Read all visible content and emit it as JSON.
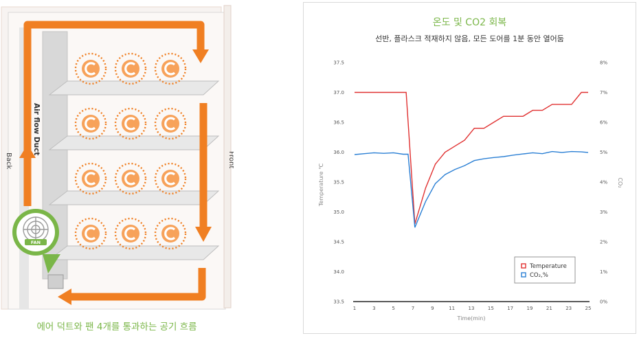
{
  "left": {
    "caption": "에어 덕트와 팬 4개를 통과하는 공기 흐름",
    "duct_label": "Air flow Duct",
    "back_label": "Back",
    "front_label": "Front",
    "fan_label": "FAN",
    "colors": {
      "arrow": "#f07f22",
      "accent": "#7ab648",
      "shelf": "#dadada"
    }
  },
  "chart_data": {
    "type": "line",
    "title": "온도 및 CO2 회복",
    "subtitle": "선반, 플라스크 적재하지 않음, 모든 도어를 1분 동안 열어둠",
    "xlabel": "Time(min)",
    "ylabel": "Temperature ℃",
    "y2label": "CO₂",
    "x_ticks": [
      "1",
      "3",
      "5",
      "7",
      "9",
      "11",
      "13",
      "15",
      "17",
      "19",
      "21",
      "23",
      "25"
    ],
    "y_ticks": [
      "33.5",
      "34.0",
      "34.5",
      "35.0",
      "35.5",
      "36.0",
      "36.5",
      "37.0",
      "37.5"
    ],
    "y2_ticks": [
      "0%",
      "1%",
      "2%",
      "3%",
      "4%",
      "5%",
      "6%",
      "7%",
      "8%"
    ],
    "xlim": [
      1,
      25
    ],
    "ylim": [
      33.5,
      37.5
    ],
    "y2lim": [
      0,
      8
    ],
    "grid": false,
    "legend_position": "bottom-right",
    "series": [
      {
        "name": "Temperature",
        "axis": "left",
        "color": "#e03030",
        "x": [
          1,
          6.3,
          7.2,
          8.3,
          9.3,
          10.3,
          11.3,
          12.3,
          13.3,
          14.3,
          15.3,
          16.3,
          17.3,
          18.3,
          19.3,
          20.3,
          21.3,
          22.3,
          23.3,
          24.3,
          25
        ],
        "y": [
          37.0,
          37.0,
          34.8,
          35.4,
          35.8,
          36.0,
          36.1,
          36.2,
          36.4,
          36.4,
          36.5,
          36.6,
          36.6,
          36.6,
          36.7,
          36.7,
          36.8,
          36.8,
          36.8,
          37.0,
          37.0
        ]
      },
      {
        "name": "CO₂,%",
        "axis": "right",
        "color": "#2a7fd4",
        "x": [
          1,
          2,
          3,
          4,
          5,
          6,
          6.5,
          7.2,
          8.3,
          9.3,
          10.3,
          11.3,
          12.3,
          13.3,
          14.3,
          15.3,
          16.3,
          17.3,
          18.3,
          19.3,
          20.3,
          21.3,
          22.3,
          23.3,
          24.3,
          25
        ],
        "y": [
          4.92,
          4.95,
          4.98,
          4.96,
          4.98,
          4.93,
          4.93,
          2.48,
          3.35,
          3.95,
          4.25,
          4.42,
          4.55,
          4.72,
          4.78,
          4.82,
          4.85,
          4.9,
          4.94,
          4.98,
          4.95,
          5.02,
          4.99,
          5.02,
          5.01,
          4.99
        ]
      }
    ]
  }
}
